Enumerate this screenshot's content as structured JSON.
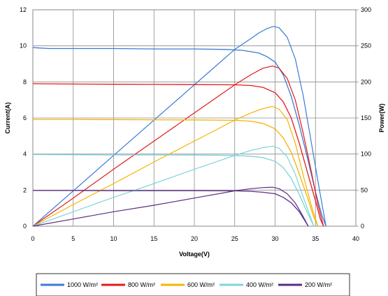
{
  "chart_data": {
    "type": "line",
    "xlabel": "Voltage(V)",
    "ylabel": "Current(A)",
    "y2label": "Power(W)",
    "xlim": [
      0,
      40
    ],
    "ylim": [
      0,
      12
    ],
    "y2lim": [
      0,
      300
    ],
    "xticks": [
      "0",
      "5",
      "10",
      "15",
      "20",
      "25",
      "30",
      "35",
      "40"
    ],
    "yticks": [
      "0",
      "2",
      "4",
      "6",
      "8",
      "10",
      "12"
    ],
    "y2ticks": [
      "0",
      "50",
      "100",
      "150",
      "200",
      "250",
      "300"
    ],
    "grid": true,
    "legend": "bottom",
    "series": [
      {
        "name": "1000 W/m²",
        "color": "#3a7bd5",
        "current": [
          [
            0,
            9.9
          ],
          [
            2,
            9.85
          ],
          [
            10,
            9.85
          ],
          [
            15,
            9.83
          ],
          [
            20,
            9.83
          ],
          [
            24,
            9.8
          ],
          [
            26,
            9.75
          ],
          [
            28,
            9.6
          ],
          [
            29,
            9.4
          ],
          [
            30,
            9.1
          ],
          [
            31,
            8.4
          ],
          [
            32,
            7.2
          ],
          [
            33,
            5.6
          ],
          [
            34,
            3.8
          ],
          [
            35,
            1.9
          ],
          [
            35.8,
            0.6
          ],
          [
            36.3,
            0
          ]
        ],
        "power": [
          [
            0,
            0
          ],
          [
            5,
            49
          ],
          [
            10,
            98
          ],
          [
            15,
            147
          ],
          [
            20,
            196
          ],
          [
            25,
            245
          ],
          [
            27,
            260
          ],
          [
            28,
            268
          ],
          [
            29,
            274
          ],
          [
            29.8,
            277
          ],
          [
            30.5,
            275
          ],
          [
            31.5,
            262
          ],
          [
            32.5,
            232
          ],
          [
            33.5,
            180
          ],
          [
            34.5,
            115
          ],
          [
            35.5,
            50
          ],
          [
            36.3,
            0
          ]
        ]
      },
      {
        "name": "800 W/m²",
        "color": "#e41a1c",
        "current": [
          [
            0,
            7.9
          ],
          [
            5,
            7.88
          ],
          [
            10,
            7.87
          ],
          [
            15,
            7.86
          ],
          [
            20,
            7.85
          ],
          [
            25,
            7.84
          ],
          [
            27,
            7.8
          ],
          [
            28.5,
            7.7
          ],
          [
            30,
            7.4
          ],
          [
            31,
            6.9
          ],
          [
            32,
            6.0
          ],
          [
            33,
            4.6
          ],
          [
            34,
            3.0
          ],
          [
            35,
            1.4
          ],
          [
            35.6,
            0.4
          ],
          [
            36,
            0
          ]
        ],
        "power": [
          [
            0,
            0
          ],
          [
            5,
            39
          ],
          [
            10,
            79
          ],
          [
            15,
            118
          ],
          [
            20,
            157
          ],
          [
            25,
            196
          ],
          [
            27,
            210
          ],
          [
            28.5,
            219
          ],
          [
            29.7,
            222
          ],
          [
            30.5,
            219
          ],
          [
            31.5,
            205
          ],
          [
            32.5,
            175
          ],
          [
            33.5,
            128
          ],
          [
            34.5,
            75
          ],
          [
            35.3,
            30
          ],
          [
            36,
            0
          ]
        ]
      },
      {
        "name": "600 W/m²",
        "color": "#f5b400",
        "current": [
          [
            0,
            5.92
          ],
          [
            5,
            5.92
          ],
          [
            10,
            5.91
          ],
          [
            15,
            5.9
          ],
          [
            20,
            5.89
          ],
          [
            25,
            5.87
          ],
          [
            27,
            5.82
          ],
          [
            28.5,
            5.7
          ],
          [
            30,
            5.4
          ],
          [
            31,
            4.9
          ],
          [
            32,
            4.1
          ],
          [
            33,
            2.9
          ],
          [
            34,
            1.6
          ],
          [
            34.8,
            0.5
          ],
          [
            35.3,
            0
          ]
        ],
        "power": [
          [
            0,
            0
          ],
          [
            5,
            30
          ],
          [
            10,
            59
          ],
          [
            15,
            89
          ],
          [
            20,
            118
          ],
          [
            25,
            147
          ],
          [
            27,
            157
          ],
          [
            28.5,
            163
          ],
          [
            29.7,
            166
          ],
          [
            30.5,
            162
          ],
          [
            31.5,
            148
          ],
          [
            32.5,
            115
          ],
          [
            33.5,
            70
          ],
          [
            34.5,
            28
          ],
          [
            35.3,
            0
          ]
        ]
      },
      {
        "name": "400 W/m²",
        "color": "#7fd3dc",
        "current": [
          [
            0,
            3.97
          ],
          [
            5,
            3.96
          ],
          [
            10,
            3.95
          ],
          [
            15,
            3.95
          ],
          [
            20,
            3.94
          ],
          [
            25,
            3.92
          ],
          [
            27,
            3.88
          ],
          [
            28.5,
            3.8
          ],
          [
            30,
            3.6
          ],
          [
            31,
            3.25
          ],
          [
            32,
            2.65
          ],
          [
            33,
            1.75
          ],
          [
            34,
            0.75
          ],
          [
            34.8,
            0
          ]
        ],
        "power": [
          [
            0,
            0
          ],
          [
            5,
            20
          ],
          [
            10,
            40
          ],
          [
            15,
            59
          ],
          [
            20,
            79
          ],
          [
            25,
            98
          ],
          [
            27,
            105
          ],
          [
            28.5,
            109
          ],
          [
            29.7,
            111
          ],
          [
            30.5,
            108
          ],
          [
            31.5,
            96
          ],
          [
            32.5,
            72
          ],
          [
            33.5,
            40
          ],
          [
            34.3,
            15
          ],
          [
            34.8,
            0
          ]
        ]
      },
      {
        "name": "200 W/m²",
        "color": "#5b2c83",
        "current": [
          [
            0,
            1.98
          ],
          [
            5,
            1.98
          ],
          [
            10,
            1.97
          ],
          [
            15,
            1.97
          ],
          [
            20,
            1.97
          ],
          [
            25,
            1.96
          ],
          [
            27,
            1.93
          ],
          [
            28.5,
            1.88
          ],
          [
            30,
            1.8
          ],
          [
            31,
            1.6
          ],
          [
            32,
            1.3
          ],
          [
            33,
            0.8
          ],
          [
            33.7,
            0.3
          ],
          [
            34.1,
            0
          ]
        ],
        "power": [
          [
            0,
            0
          ],
          [
            5,
            10
          ],
          [
            10,
            20
          ],
          [
            15,
            29
          ],
          [
            20,
            39
          ],
          [
            25,
            49
          ],
          [
            27,
            52
          ],
          [
            28.5,
            53.5
          ],
          [
            29.7,
            54
          ],
          [
            30.5,
            52
          ],
          [
            31.5,
            45
          ],
          [
            32.5,
            32
          ],
          [
            33.3,
            17
          ],
          [
            34.1,
            0
          ]
        ]
      }
    ]
  }
}
